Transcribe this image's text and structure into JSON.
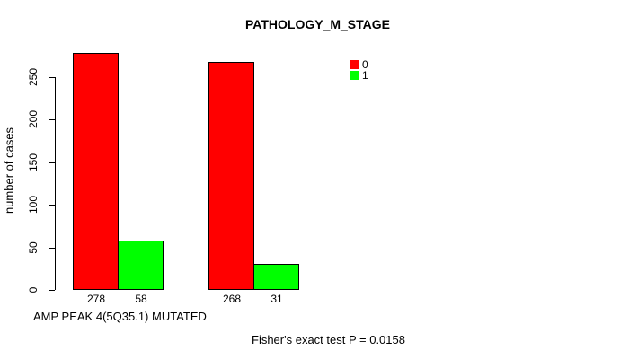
{
  "title": "PATHOLOGY_M_STAGE",
  "y_axis_label": "number of cases",
  "x_axis_label": "AMP PEAK 4(5Q35.1) MUTATED",
  "annotation": "Fisher's exact test P = 0.0158",
  "legend": {
    "position": "top-right",
    "items": [
      {
        "label": "0",
        "color": "#FF0000"
      },
      {
        "label": "1",
        "color": "#00FF00"
      }
    ]
  },
  "colors": {
    "red": "#FF0000",
    "green": "#00FF00",
    "axis": "#000000",
    "background": "#FFFFFF"
  },
  "chart_data": {
    "type": "bar",
    "title": "PATHOLOGY_M_STAGE",
    "xlabel": "AMP PEAK 4(5Q35.1) MUTATED",
    "ylabel": "number of cases",
    "ylim": [
      0,
      280
    ],
    "yticks": [
      0,
      50,
      100,
      150,
      200,
      250
    ],
    "grid": false,
    "legend_position": "top-right",
    "categories": [
      "",
      ""
    ],
    "series": [
      {
        "name": "0",
        "color": "#FF0000",
        "values": [
          278,
          268
        ]
      },
      {
        "name": "1",
        "color": "#00FF00",
        "values": [
          58,
          31
        ]
      }
    ],
    "bar_value_labels": [
      [
        278,
        58
      ],
      [
        268,
        31
      ]
    ],
    "annotation": "Fisher's exact test P = 0.0158"
  }
}
